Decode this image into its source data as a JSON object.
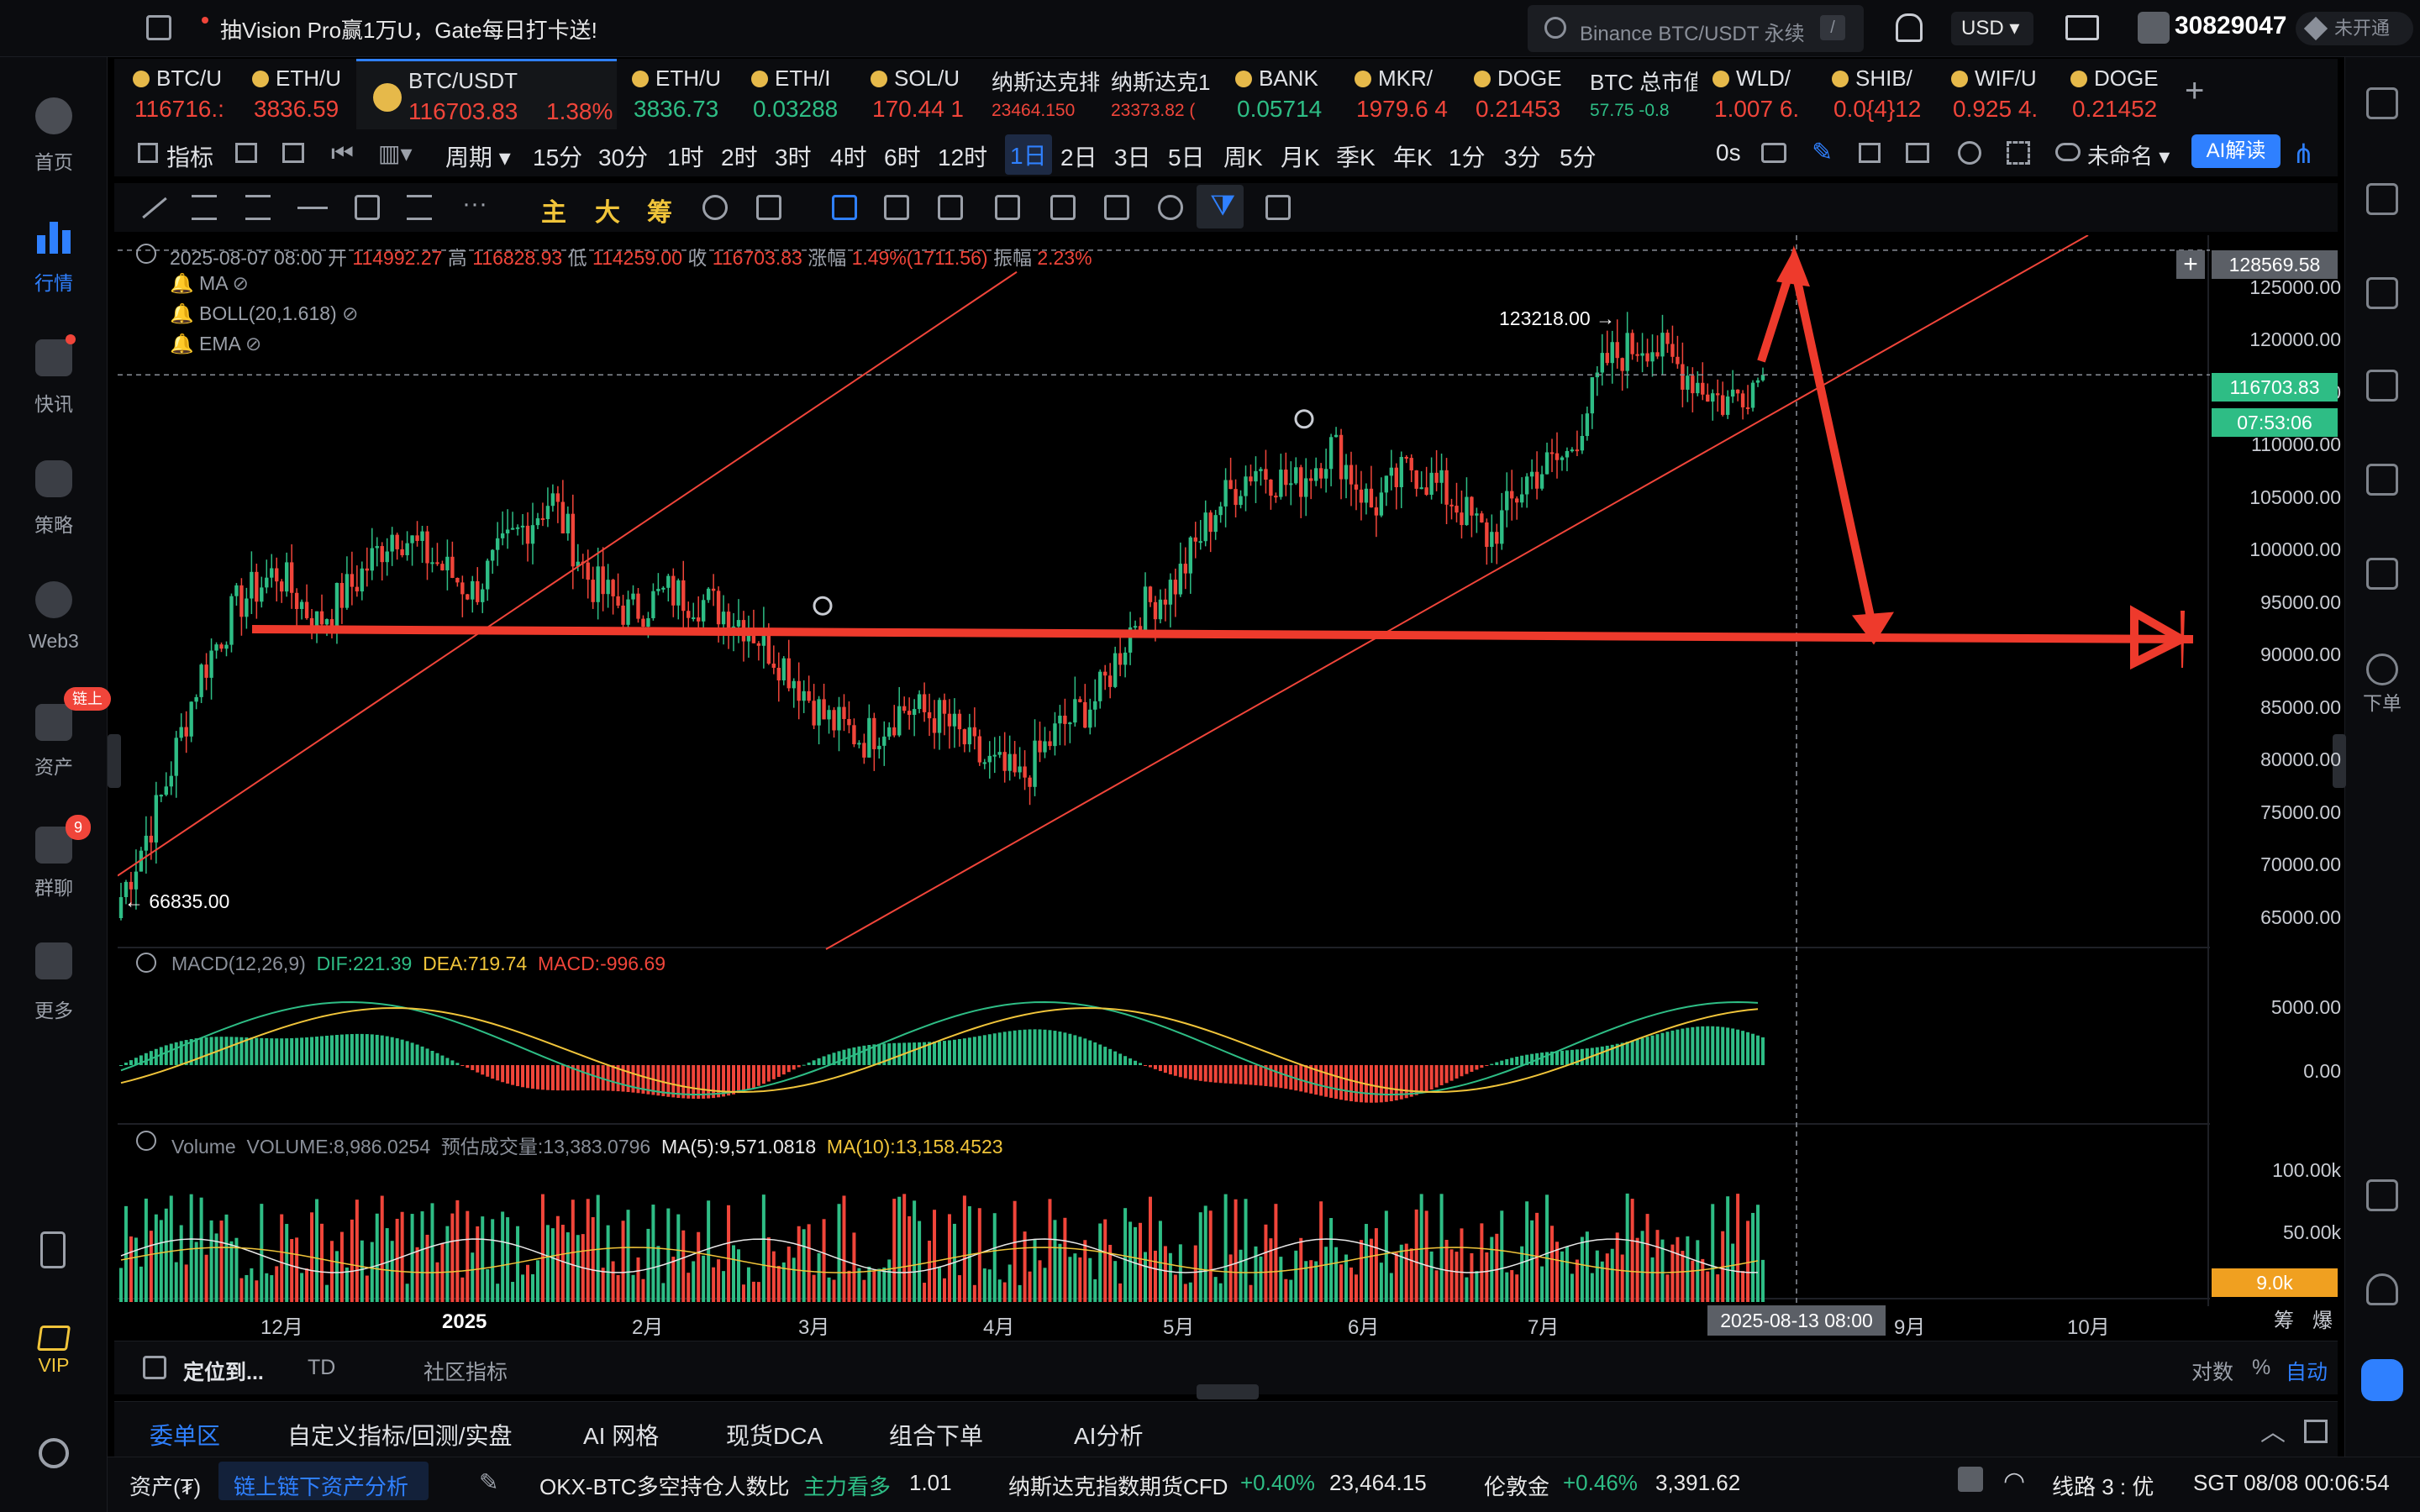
{
  "topbar": {
    "promo": "抽Vision Pro赢1万U，Gate每日打卡送!",
    "search_placeholder": "Binance BTC/USDT 永续",
    "search_shortcut": "/",
    "currency": "USD",
    "uid": "30829047",
    "verify_status": "未开通"
  },
  "leftnav": [
    {
      "label": "首页"
    },
    {
      "label": "行情"
    },
    {
      "label": "快讯"
    },
    {
      "label": "策略"
    },
    {
      "label": "Web3"
    },
    {
      "label": "资产",
      "badge": "链上"
    },
    {
      "label": "群聊",
      "badge": "9"
    },
    {
      "label": "更多"
    },
    {
      "label": "VIP"
    }
  ],
  "rightnav": {
    "order_label": "下单"
  },
  "tabs": [
    {
      "name": "BTC/U",
      "price": "116716.:",
      "color": "red"
    },
    {
      "name": "ETH/U",
      "price": "3836.59",
      "color": "red"
    },
    {
      "name": "BTC/USDT",
      "price": "116703.83",
      "change": "1.38%",
      "color": "red"
    },
    {
      "name": "ETH/U",
      "price": "3836.73",
      "color": "green"
    },
    {
      "name": "ETH/I",
      "price": "0.03288",
      "color": "green"
    },
    {
      "name": "SOL/U",
      "price": "170.44 1",
      "color": "red"
    },
    {
      "name": "纳斯达克排",
      "price": "23464.150",
      "color": "red"
    },
    {
      "name": "纳斯达克1",
      "price": "23373.82 (",
      "color": "red"
    },
    {
      "name": "BANK",
      "price": "0.05714",
      "color": "green"
    },
    {
      "name": "MKR/",
      "price": "1979.6 4",
      "color": "red"
    },
    {
      "name": "DOGE",
      "price": "0.21453",
      "color": "red"
    },
    {
      "name": "BTC 总市值",
      "price": "57.75 -0.8",
      "color": "green"
    },
    {
      "name": "WLD/",
      "price": "1.007 6.",
      "color": "red"
    },
    {
      "name": "SHIB/",
      "price": "0.0{4}12",
      "color": "red"
    },
    {
      "name": "WIF/U",
      "price": "0.925 4.",
      "color": "red"
    },
    {
      "name": "DOGE",
      "price": "0.21452",
      "color": "red"
    }
  ],
  "toolbar1": {
    "indicator": "指标",
    "period": "周期",
    "intervals": [
      "15分",
      "30分",
      "1时",
      "2时",
      "3时",
      "4时",
      "6时",
      "12时",
      "1日",
      "2日",
      "3日",
      "5日",
      "周K",
      "月K",
      "季K",
      "年K",
      "1分",
      "3分",
      "5分"
    ],
    "active_interval": "1日",
    "countdown": "0s",
    "layout_name": "未命名",
    "ai_button": "AI解读"
  },
  "toolbar2": {
    "main": "主",
    "big": "大",
    "chips": "筹"
  },
  "ohlc": {
    "date": "2025-08-07 08:00",
    "open_label": "开",
    "open": "114992.27",
    "high_label": "高",
    "high": "116828.93",
    "low_label": "低",
    "low": "114259.00",
    "close_label": "收",
    "close": "116703.83",
    "change_label": "涨幅",
    "change": "1.49%(1711.56)",
    "amp_label": "振幅",
    "amp": "2.23%"
  },
  "indicators": {
    "ma": "MA",
    "boll": "BOLL(20,1.618)",
    "ema": "EMA"
  },
  "price_axis": [
    "125000.00",
    "120000.00",
    "115000.00",
    "110000.00",
    "105000.00",
    "100000.00",
    "95000.00",
    "90000.00",
    "85000.00",
    "80000.00",
    "75000.00",
    "70000.00",
    "65000.00"
  ],
  "price_tags": {
    "crosshair": "128569.58",
    "last": "116703.83",
    "countdown": "07:53:06",
    "high_mark": "123218.00 →",
    "low_mark": "← 66835.00"
  },
  "macd": {
    "title": "MACD(12,26,9)",
    "dif": "DIF:221.39",
    "dea": "DEA:719.74",
    "macd": "MACD:-996.69",
    "axis": [
      "5000.00",
      "0.00"
    ]
  },
  "volume": {
    "title": "Volume",
    "value": "VOLUME:8,986.0254",
    "estimate": "预估成交量:13,383.0796",
    "ma5": "MA(5):9,571.0818",
    "ma10": "MA(10):13,158.4523",
    "axis": [
      "100.00k",
      "50.00k"
    ],
    "tag": "9.0k"
  },
  "time_axis": [
    "12月",
    "2025",
    "2月",
    "3月",
    "4月",
    "5月",
    "6月",
    "7月",
    "9月",
    "10月"
  ],
  "crosshair_date": "2025-08-13 08:00",
  "axis_corner": {
    "chips": "筹",
    "burst": "爆"
  },
  "bottom1": {
    "locate": "定位到...",
    "td": "TD",
    "community": "社区指标",
    "log": "对数",
    "pct": "%",
    "auto": "自动"
  },
  "bottom2": [
    "委单区",
    "自定义指标/回测/实盘",
    "AI 网格",
    "现货DCA",
    "组合下单",
    "AI分析"
  ],
  "status": {
    "assets": "资产(₮)",
    "asset_analysis": "链上链下资产分析",
    "okx_label": "OKX-BTC多空持仓人数比",
    "okx_signal": "主力看多",
    "okx_value": "1.01",
    "nasdaq_label": "纳斯达克指数期货CFD",
    "nasdaq_change": "+0.40%",
    "nasdaq_value": "23,464.15",
    "gold_label": "伦敦金",
    "gold_change": "+0.46%",
    "gold_value": "3,391.62",
    "line": "线路 3 : 优",
    "time": "SGT 08/08 00:06:54"
  },
  "chart_data": {
    "type": "candlestick",
    "symbol": "BTC/USDT",
    "interval": "1日",
    "ylim": [
      62000,
      130000
    ],
    "y_ticks": [
      65000,
      70000,
      75000,
      80000,
      85000,
      90000,
      95000,
      100000,
      105000,
      110000,
      115000,
      120000,
      125000
    ],
    "closes": [
      67000,
      76000,
      88000,
      95000,
      98000,
      93000,
      97000,
      102000,
      99000,
      96000,
      101000,
      105000,
      97000,
      94000,
      96000,
      95000,
      93000,
      89000,
      84000,
      82000,
      85000,
      84000,
      80000,
      78000,
      83000,
      86000,
      94000,
      97000,
      104000,
      108000,
      106000,
      110000,
      104000,
      108000,
      105000,
      101000,
      107000,
      109000,
      118000,
      120000,
      117000,
      114000,
      116700
    ],
    "annotations": {
      "high": 123218,
      "low": 66835,
      "support": 92000
    }
  }
}
